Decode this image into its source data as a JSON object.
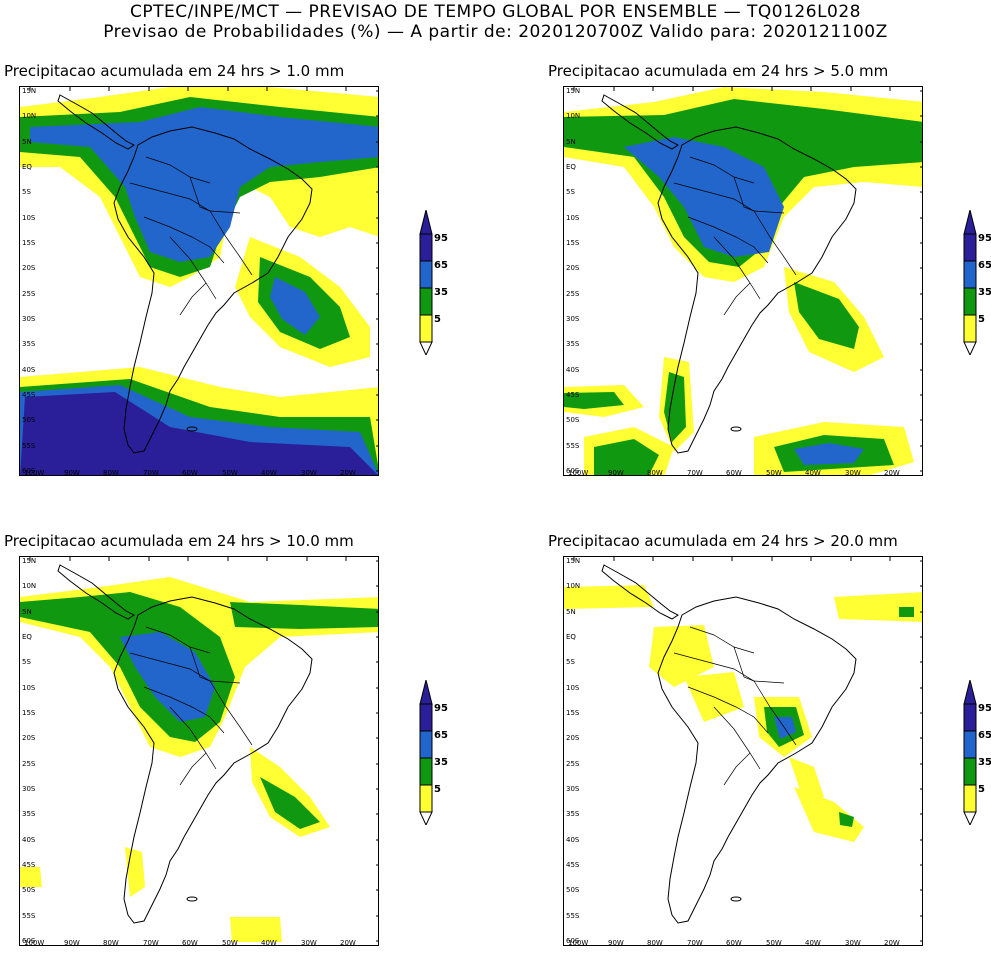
{
  "header": {
    "line1": "CPTEC/INPE/MCT — PREVISAO DE TEMPO GLOBAL POR ENSEMBLE — TQ0126L028",
    "line2": "Previsao de Probabilidades (%) —  A partir de: 2020120700Z  Valido para: 2020121100Z"
  },
  "colors": {
    "level_5": "#ffff33",
    "level_35": "#109910",
    "level_65": "#2266cc",
    "level_95": "#2a1f99",
    "coast": "#000000"
  },
  "axes": {
    "lat_labels": [
      "15N",
      "10N",
      "5N",
      "EQ",
      "5S",
      "10S",
      "15S",
      "20S",
      "25S",
      "30S",
      "35S",
      "40S",
      "45S",
      "50S",
      "55S",
      "60S"
    ],
    "lon_labels": [
      "100W",
      "90W",
      "80W",
      "70W",
      "60W",
      "50W",
      "40W",
      "30W",
      "20W"
    ]
  },
  "legend": {
    "labels": [
      "95",
      "65",
      "35",
      "5"
    ]
  },
  "panels": [
    {
      "id": "p1",
      "title": "Precipitacao acumulada em 24 hrs > 1.0 mm",
      "coverage": "heavy"
    },
    {
      "id": "p2",
      "title": "Precipitacao acumulada em 24 hrs > 5.0 mm",
      "coverage": "medium"
    },
    {
      "id": "p3",
      "title": "Precipitacao acumulada em 24 hrs > 10.0 mm",
      "coverage": "light"
    },
    {
      "id": "p4",
      "title": "Precipitacao acumulada em 24 hrs > 20.0 mm",
      "coverage": "minimal"
    }
  ]
}
